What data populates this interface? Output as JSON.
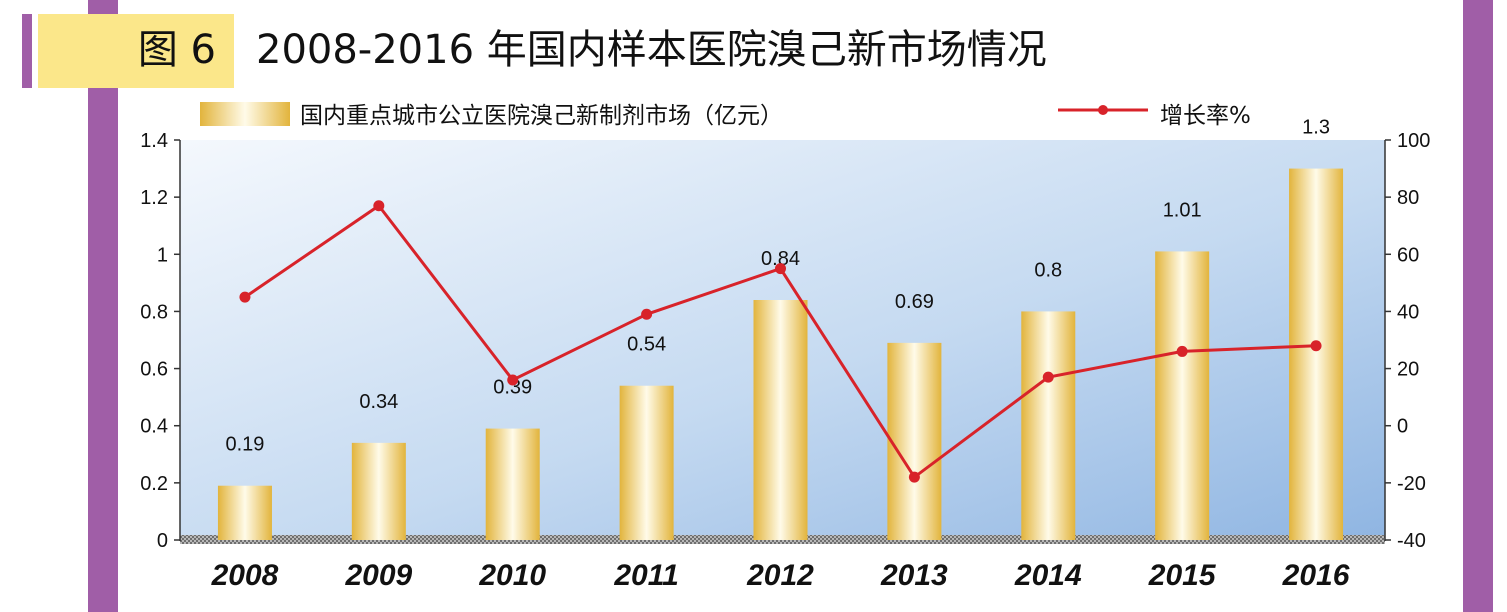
{
  "figure": {
    "label": "图 6",
    "title": "2008-2016 年国内样本医院溴己新市场情况"
  },
  "colors": {
    "sidebar": "#a05ea7",
    "figure_label_bg": "#fbe78a",
    "bar_gold": "#e7bf4e",
    "line_red": "#d8232a",
    "plot_blue": "#9ec1e8"
  },
  "chart_data": {
    "type": "bar+line",
    "categories": [
      "2008",
      "2009",
      "2010",
      "2011",
      "2012",
      "2013",
      "2014",
      "2015",
      "2016"
    ],
    "series": [
      {
        "name": "国内重点城市公立医院溴己新制剂市场（亿元）",
        "type": "bar",
        "axis": "left",
        "values": [
          0.19,
          0.34,
          0.39,
          0.54,
          0.84,
          0.69,
          0.8,
          1.01,
          1.3
        ],
        "labels": [
          "0.19",
          "0.34",
          "0.39",
          "0.54",
          "0.84",
          "0.69",
          "0.8",
          "1.01",
          "1.3"
        ]
      },
      {
        "name": "增长率%",
        "type": "line",
        "axis": "right",
        "values": [
          45,
          77,
          16,
          39,
          55,
          -18,
          17,
          26,
          28
        ]
      }
    ],
    "left_axis": {
      "range": [
        0,
        1.4
      ],
      "ticks": [
        "0",
        "0.2",
        "0.4",
        "0.6",
        "0.8",
        "1",
        "1.2",
        "1.4"
      ]
    },
    "right_axis": {
      "range": [
        -40,
        100
      ],
      "ticks": [
        "-40",
        "-20",
        "0",
        "20",
        "40",
        "60",
        "80",
        "100"
      ]
    },
    "legend": "top",
    "grid": false
  }
}
